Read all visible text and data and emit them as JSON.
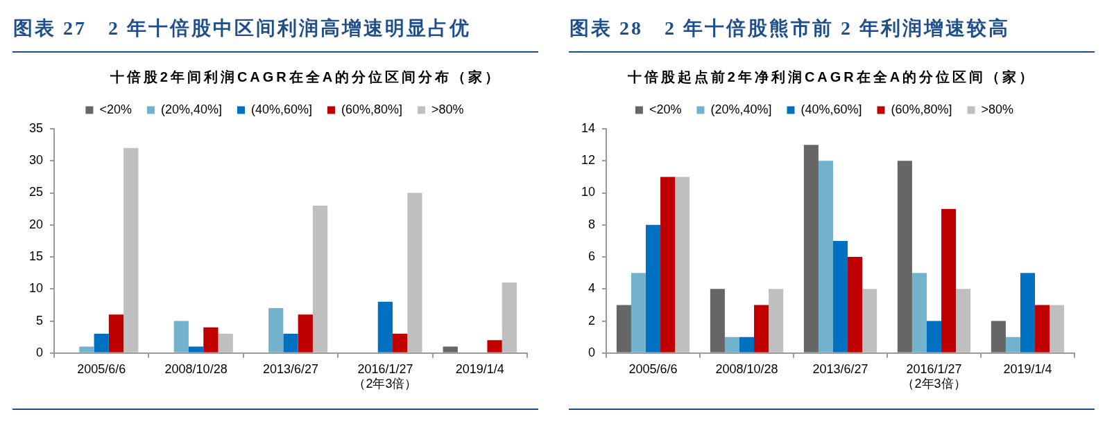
{
  "chart_data": [
    {
      "type": "bar",
      "title": "图表 27　2 年十倍股中区间利润高增速明显占优",
      "subtitle": "十倍股2年间利润CAGR在全A的分位区间分布（家）",
      "categories": [
        "2005/6/6",
        "2008/10/28",
        "2013/6/27",
        "2016/1/27\n（2年3倍）",
        "2019/1/4"
      ],
      "series": [
        {
          "name": "<20%",
          "color": "#666666",
          "values": [
            0,
            0,
            0,
            0,
            1
          ]
        },
        {
          "name": "(20%,40%]",
          "color": "#72b2cc",
          "values": [
            1,
            5,
            7,
            0,
            0
          ]
        },
        {
          "name": "(40%,60%]",
          "color": "#0070c0",
          "values": [
            3,
            1,
            3,
            8,
            0
          ]
        },
        {
          "name": "(60%,80%]",
          "color": "#c00000",
          "values": [
            6,
            4,
            6,
            3,
            2
          ]
        },
        {
          "name": ">80%",
          "color": "#bfbfbf",
          "values": [
            32,
            3,
            23,
            25,
            11
          ]
        }
      ],
      "ylim": [
        0,
        35
      ],
      "yticks": [
        0,
        5,
        10,
        15,
        20,
        25,
        30,
        35
      ],
      "legend": "top"
    },
    {
      "type": "bar",
      "title": "图表 28　2 年十倍股熊市前 2 年利润增速较高",
      "subtitle": "十倍股起点前2年净利润CAGR在全A的分位区间（家）",
      "categories": [
        "2005/6/6",
        "2008/10/28",
        "2013/6/27",
        "2016/1/27\n（2年3倍）",
        "2019/1/4"
      ],
      "series": [
        {
          "name": "<20%",
          "color": "#666666",
          "values": [
            3,
            4,
            13,
            12,
            2
          ]
        },
        {
          "name": "(20%,40%]",
          "color": "#72b2cc",
          "values": [
            5,
            1,
            12,
            5,
            1
          ]
        },
        {
          "name": "(40%,60%]",
          "color": "#0070c0",
          "values": [
            8,
            1,
            7,
            2,
            5
          ]
        },
        {
          "name": "(60%,80%]",
          "color": "#c00000",
          "values": [
            11,
            3,
            6,
            9,
            3
          ]
        },
        {
          "name": ">80%",
          "color": "#bfbfbf",
          "values": [
            11,
            4,
            4,
            4,
            3
          ]
        }
      ],
      "ylim": [
        0,
        14
      ],
      "yticks": [
        0,
        2,
        4,
        6,
        8,
        10,
        12,
        14
      ],
      "legend": "top"
    }
  ]
}
